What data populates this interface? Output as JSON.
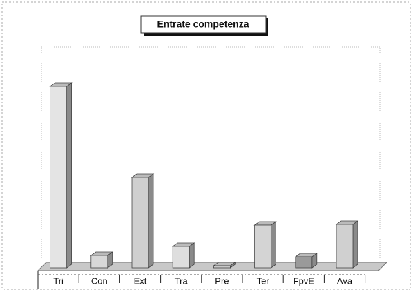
{
  "chart_data": {
    "type": "bar3d",
    "title": "Entrate competenza",
    "categories": [
      "Tri",
      "Con",
      "Ext",
      "Tra",
      "Pre",
      "Ter",
      "FpvE",
      "Ava"
    ],
    "values": [
      263,
      18,
      131,
      31,
      3,
      62,
      16,
      63
    ],
    "colors": [
      "#e4e4e4",
      "#d8d8d8",
      "#cfcfcf",
      "#dedede",
      "#c8c8c8",
      "#d4d4d4",
      "#9a9a9a",
      "#d0d0d0"
    ],
    "ylim": [
      0,
      300
    ]
  }
}
